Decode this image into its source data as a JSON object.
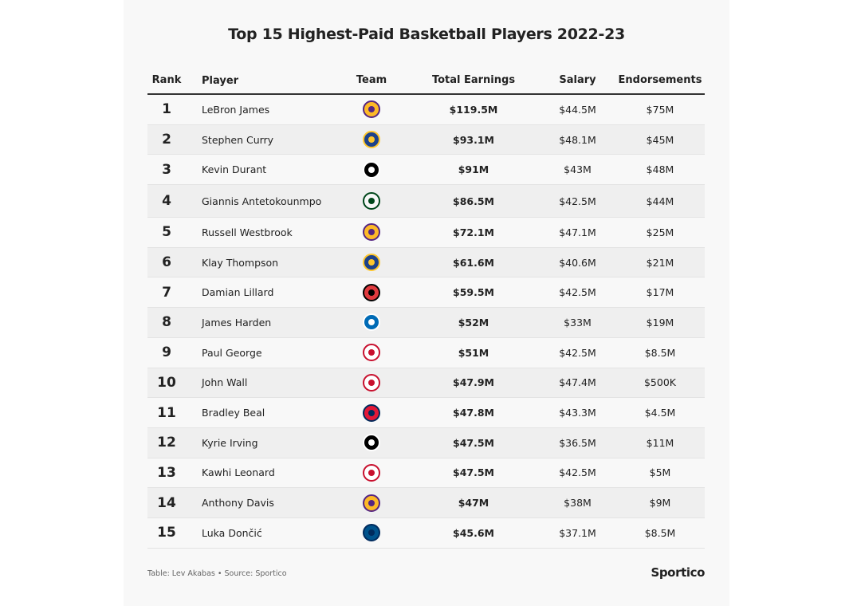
{
  "title": "Top 15 Highest-Paid Basketball Players 2022-23",
  "footer": {
    "credit": "Table: Lev Akabas • Source: Sportico",
    "brand": "Sportico"
  },
  "chart_data": {
    "type": "table",
    "columns": [
      "Rank",
      "Player",
      "Team",
      "Total Earnings",
      "Salary",
      "Endorsements"
    ],
    "rows": [
      {
        "rank": "1",
        "player": "LeBron James",
        "team_logo": "lakers",
        "total": "$119.5M",
        "salary": "$44.5M",
        "endorsements": "$75M"
      },
      {
        "rank": "2",
        "player": "Stephen Curry",
        "team_logo": "warriors",
        "total": "$93.1M",
        "salary": "$48.1M",
        "endorsements": "$45M"
      },
      {
        "rank": "3",
        "player": "Kevin Durant",
        "team_logo": "nets",
        "total": "$91M",
        "salary": "$43M",
        "endorsements": "$48M"
      },
      {
        "rank": "4",
        "player": "Giannis Antetokounmpo",
        "team_logo": "bucks",
        "total": "$86.5M",
        "salary": "$42.5M",
        "endorsements": "$44M"
      },
      {
        "rank": "5",
        "player": "Russell Westbrook",
        "team_logo": "lakers",
        "total": "$72.1M",
        "salary": "$47.1M",
        "endorsements": "$25M"
      },
      {
        "rank": "6",
        "player": "Klay Thompson",
        "team_logo": "warriors",
        "total": "$61.6M",
        "salary": "$40.6M",
        "endorsements": "$21M"
      },
      {
        "rank": "7",
        "player": "Damian Lillard",
        "team_logo": "trail-blazers",
        "total": "$59.5M",
        "salary": "$42.5M",
        "endorsements": "$17M"
      },
      {
        "rank": "8",
        "player": "James Harden",
        "team_logo": "76ers",
        "total": "$52M",
        "salary": "$33M",
        "endorsements": "$19M"
      },
      {
        "rank": "9",
        "player": "Paul George",
        "team_logo": "clippers",
        "total": "$51M",
        "salary": "$42.5M",
        "endorsements": "$8.5M"
      },
      {
        "rank": "10",
        "player": "John Wall",
        "team_logo": "clippers",
        "total": "$47.9M",
        "salary": "$47.4M",
        "endorsements": "$500K"
      },
      {
        "rank": "11",
        "player": "Bradley Beal",
        "team_logo": "wizards",
        "total": "$47.8M",
        "salary": "$43.3M",
        "endorsements": "$4.5M"
      },
      {
        "rank": "12",
        "player": "Kyrie Irving",
        "team_logo": "nets",
        "total": "$47.5M",
        "salary": "$36.5M",
        "endorsements": "$11M"
      },
      {
        "rank": "13",
        "player": "Kawhi Leonard",
        "team_logo": "clippers",
        "total": "$47.5M",
        "salary": "$42.5M",
        "endorsements": "$5M"
      },
      {
        "rank": "14",
        "player": "Anthony Davis",
        "team_logo": "lakers",
        "total": "$47M",
        "salary": "$38M",
        "endorsements": "$9M"
      },
      {
        "rank": "15",
        "player": "Luka Dončić",
        "team_logo": "mavericks",
        "total": "$45.6M",
        "salary": "$37.1M",
        "endorsements": "$8.5M"
      }
    ]
  },
  "logo_colors": {
    "lakers": [
      "#fdb927",
      "#552583"
    ],
    "warriors": [
      "#1d428a",
      "#ffc72c"
    ],
    "nets": [
      "#000000",
      "#ffffff"
    ],
    "bucks": [
      "#f8f8f8",
      "#00471b"
    ],
    "trail-blazers": [
      "#e03a3e",
      "#000000"
    ],
    "76ers": [
      "#006bb6",
      "#ffffff"
    ],
    "clippers": [
      "#ffffff",
      "#c8102e"
    ],
    "wizards": [
      "#e31837",
      "#002b5c"
    ],
    "mavericks": [
      "#00538c",
      "#002b5e"
    ]
  }
}
